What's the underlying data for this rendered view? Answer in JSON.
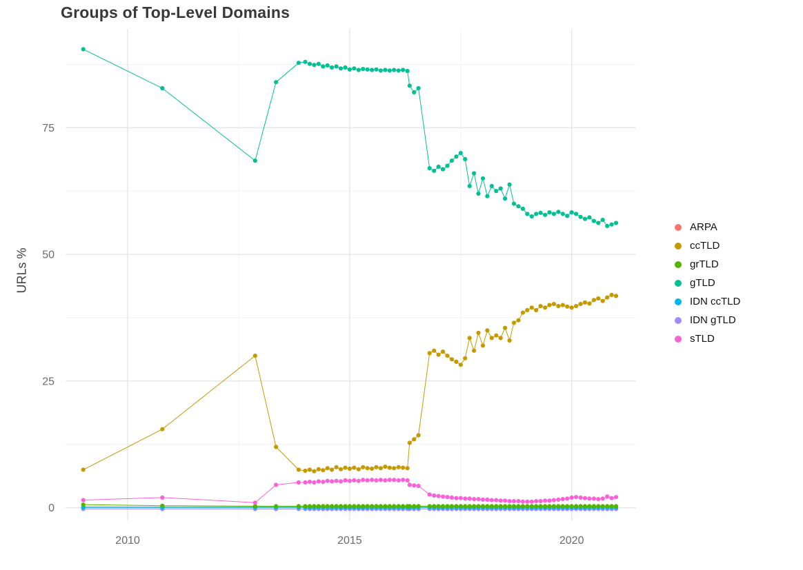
{
  "chart_data": {
    "type": "line",
    "title": "Groups of Top-Level Domains",
    "xlabel": "",
    "ylabel": "URLs %",
    "xlim": [
      2008.6,
      2021.45
    ],
    "ylim": [
      -2.5,
      94.5
    ],
    "x_ticks": [
      2010,
      2015,
      2020
    ],
    "x_tick_labels": [
      "2010",
      "2015",
      "2020"
    ],
    "x_minor_ticks": [
      2012.5,
      2017.5
    ],
    "y_ticks": [
      0,
      25,
      50,
      75
    ],
    "y_tick_labels": [
      "0",
      "25",
      "50",
      "75"
    ],
    "y_minor_ticks": [
      12.5,
      37.5,
      62.5,
      87.5
    ],
    "grid": true,
    "legend_position": "right",
    "colors": {
      "background": "#FFFFFF",
      "grid_major": "#E4E4E4",
      "grid_minor": "#EFEFEF",
      "axis_text": "#6b6b6b",
      "title_text": "#383838"
    },
    "draw_order": [
      "ARPA",
      "IDN gTLD",
      "IDN ccTLD",
      "ccTLD",
      "gTLD",
      "grTLD",
      "sTLD"
    ],
    "x": [
      2009.0,
      2010.78,
      2012.87,
      2013.34,
      2013.85,
      2014.0,
      2014.1,
      2014.2,
      2014.3,
      2014.4,
      2014.5,
      2014.6,
      2014.7,
      2014.8,
      2014.9,
      2015.0,
      2015.1,
      2015.2,
      2015.3,
      2015.4,
      2015.5,
      2015.6,
      2015.7,
      2015.8,
      2015.9,
      2016.0,
      2016.1,
      2016.2,
      2016.3,
      2016.35,
      2016.45,
      2016.55,
      2016.8,
      2016.9,
      2017.0,
      2017.1,
      2017.2,
      2017.3,
      2017.4,
      2017.5,
      2017.6,
      2017.7,
      2017.8,
      2017.9,
      2018.0,
      2018.1,
      2018.2,
      2018.3,
      2018.4,
      2018.5,
      2018.6,
      2018.7,
      2018.8,
      2018.9,
      2019.0,
      2019.1,
      2019.2,
      2019.3,
      2019.4,
      2019.5,
      2019.6,
      2019.7,
      2019.8,
      2019.9,
      2020.0,
      2020.1,
      2020.2,
      2020.3,
      2020.4,
      2020.5,
      2020.6,
      2020.7,
      2020.8,
      2020.9,
      2021.0
    ],
    "series": [
      {
        "name": "ARPA",
        "color": "#F8766D",
        "constant": 0.15
      },
      {
        "name": "ccTLD",
        "color": "#C49A00",
        "values": [
          7.5,
          15.5,
          30.0,
          12.0,
          7.5,
          7.3,
          7.5,
          7.2,
          7.6,
          7.4,
          7.8,
          7.5,
          8.0,
          7.6,
          7.9,
          7.7,
          7.9,
          7.6,
          8.0,
          7.8,
          7.7,
          8.0,
          7.8,
          8.1,
          7.9,
          7.8,
          8.0,
          7.9,
          7.8,
          12.8,
          13.5,
          14.3,
          30.5,
          31.0,
          30.2,
          30.8,
          30.0,
          29.3,
          28.8,
          28.2,
          29.5,
          33.5,
          31.0,
          34.5,
          32.0,
          35.0,
          33.5,
          34.0,
          33.5,
          35.5,
          33.0,
          36.5,
          37.0,
          38.5,
          39.0,
          39.5,
          39.0,
          39.8,
          39.5,
          40.0,
          40.2,
          39.8,
          40.0,
          39.7,
          39.5,
          39.8,
          40.2,
          40.5,
          40.3,
          41.0,
          41.3,
          40.8,
          41.5,
          42.0,
          41.8
        ]
      },
      {
        "name": "grTLD",
        "color": "#53B400",
        "values": [
          0.6,
          0.4,
          0.3,
          0.3,
          0.3,
          0.3,
          0.3,
          0.3,
          0.3,
          0.3,
          0.3,
          0.3,
          0.3,
          0.3,
          0.3,
          0.3,
          0.3,
          0.3,
          0.3,
          0.3,
          0.3,
          0.3,
          0.3,
          0.3,
          0.3,
          0.3,
          0.3,
          0.3,
          0.3,
          0.3,
          0.3,
          0.3,
          0.3,
          0.3,
          0.3,
          0.3,
          0.3,
          0.3,
          0.3,
          0.3,
          0.3,
          0.3,
          0.3,
          0.3,
          0.3,
          0.3,
          0.3,
          0.3,
          0.3,
          0.3,
          0.3,
          0.3,
          0.3,
          0.3,
          0.3,
          0.3,
          0.3,
          0.3,
          0.3,
          0.3,
          0.3,
          0.3,
          0.3,
          0.3,
          0.3,
          0.3,
          0.3,
          0.3,
          0.3,
          0.3,
          0.3,
          0.3,
          0.3,
          0.3,
          0.3
        ]
      },
      {
        "name": "gTLD",
        "color": "#00C094",
        "values": [
          90.5,
          82.8,
          68.5,
          84.0,
          87.8,
          88.0,
          87.6,
          87.4,
          87.6,
          87.1,
          87.3,
          86.9,
          87.1,
          86.7,
          86.9,
          86.5,
          86.7,
          86.4,
          86.6,
          86.5,
          86.4,
          86.5,
          86.3,
          86.4,
          86.3,
          86.4,
          86.3,
          86.4,
          86.2,
          83.3,
          82.0,
          82.8,
          67.0,
          66.5,
          67.3,
          66.8,
          67.5,
          68.5,
          69.3,
          70.0,
          68.8,
          63.5,
          66.0,
          62.0,
          65.0,
          61.5,
          63.5,
          62.5,
          63.0,
          61.0,
          63.8,
          60.0,
          59.5,
          59.0,
          58.0,
          57.5,
          58.0,
          58.2,
          57.8,
          58.3,
          58.0,
          58.4,
          58.0,
          57.6,
          58.3,
          58.0,
          57.4,
          57.0,
          57.3,
          56.6,
          56.2,
          56.8,
          55.6,
          55.9,
          56.2
        ]
      },
      {
        "name": "IDN ccTLD",
        "color": "#00B6EB",
        "constant": 0.05
      },
      {
        "name": "IDN gTLD",
        "color": "#A58AFF",
        "constant": -0.25
      },
      {
        "name": "sTLD",
        "color": "#FB61D7",
        "values": [
          1.5,
          2.0,
          1.0,
          4.5,
          5.0,
          5.0,
          5.1,
          5.0,
          5.2,
          5.1,
          5.3,
          5.2,
          5.3,
          5.2,
          5.4,
          5.3,
          5.4,
          5.3,
          5.5,
          5.4,
          5.5,
          5.4,
          5.5,
          5.4,
          5.5,
          5.5,
          5.4,
          5.5,
          5.4,
          4.5,
          4.4,
          4.3,
          2.6,
          2.4,
          2.3,
          2.2,
          2.1,
          2.0,
          1.9,
          1.9,
          1.8,
          1.8,
          1.7,
          1.7,
          1.6,
          1.6,
          1.5,
          1.5,
          1.4,
          1.4,
          1.3,
          1.3,
          1.3,
          1.2,
          1.2,
          1.2,
          1.3,
          1.3,
          1.4,
          1.4,
          1.5,
          1.6,
          1.7,
          1.8,
          2.0,
          2.1,
          2.0,
          1.9,
          1.8,
          1.8,
          1.7,
          1.8,
          2.2,
          1.9,
          2.1
        ]
      }
    ]
  }
}
